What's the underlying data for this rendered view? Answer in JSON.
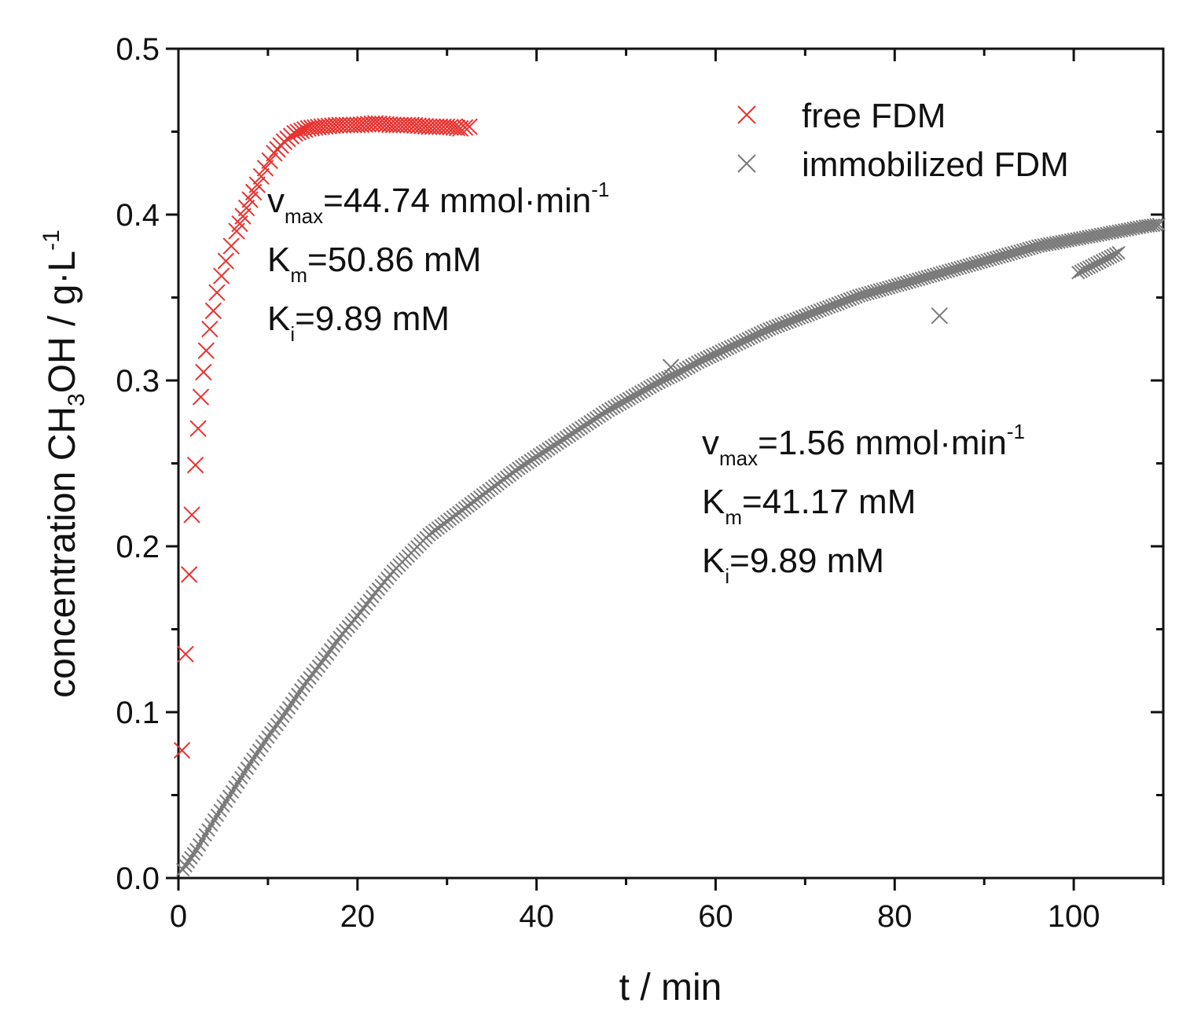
{
  "chart_data": {
    "type": "scatter",
    "title": "",
    "xlabel": "t / min",
    "ylabel": {
      "prefix": "concentration CH",
      "sub": "3",
      "middle": "OH / g·L",
      "sup": "-1"
    },
    "xlim": [
      0,
      110
    ],
    "ylim": [
      0.0,
      0.5
    ],
    "x_ticks": [
      0,
      20,
      40,
      60,
      80,
      100
    ],
    "y_ticks": [
      0.0,
      0.1,
      0.2,
      0.3,
      0.4,
      0.5
    ],
    "y_tick_labels": [
      "0.0",
      "0.1",
      "0.2",
      "0.3",
      "0.4",
      "0.5"
    ],
    "legend_position": "top-right",
    "marker": "×",
    "series": [
      {
        "name": "free FDM",
        "color": "#e8322f",
        "points": [
          [
            0.4,
            0.077
          ],
          [
            0.8,
            0.135
          ],
          [
            1.2,
            0.183
          ],
          [
            1.5,
            0.219
          ],
          [
            1.9,
            0.249
          ],
          [
            2.2,
            0.271
          ],
          [
            2.5,
            0.29
          ],
          [
            2.8,
            0.305
          ],
          [
            3.1,
            0.318
          ],
          [
            3.5,
            0.331
          ],
          [
            3.9,
            0.342
          ],
          [
            4.3,
            0.353
          ],
          [
            4.8,
            0.363
          ],
          [
            5.3,
            0.372
          ],
          [
            5.9,
            0.381
          ],
          [
            6.5,
            0.39
          ],
          [
            7.2,
            0.399
          ],
          [
            8.0,
            0.409
          ],
          [
            8.8,
            0.418
          ],
          [
            9.7,
            0.428
          ],
          [
            10.7,
            0.437
          ],
          [
            11.8,
            0.444
          ],
          [
            13.0,
            0.449
          ],
          [
            14.5,
            0.452
          ],
          [
            16.0,
            0.453
          ],
          [
            18.0,
            0.454
          ],
          [
            20.0,
            0.454
          ],
          [
            22.0,
            0.455
          ],
          [
            24.0,
            0.454
          ],
          [
            26.0,
            0.454
          ],
          [
            28.0,
            0.453
          ],
          [
            30.0,
            0.453
          ],
          [
            31.5,
            0.452
          ],
          [
            32.5,
            0.453
          ]
        ]
      },
      {
        "name": "immobilized FDM",
        "color": "#7a7a7a",
        "points": [
          [
            0.5,
            0.005
          ],
          [
            2.0,
            0.017
          ],
          [
            4.0,
            0.035
          ],
          [
            6.0,
            0.052
          ],
          [
            8.0,
            0.069
          ],
          [
            10.0,
            0.085
          ],
          [
            12.0,
            0.1
          ],
          [
            14.0,
            0.116
          ],
          [
            16.0,
            0.13
          ],
          [
            18.0,
            0.145
          ],
          [
            20.0,
            0.158
          ],
          [
            22.0,
            0.172
          ],
          [
            24.0,
            0.185
          ],
          [
            26.0,
            0.196
          ],
          [
            28.0,
            0.207
          ],
          [
            30.0,
            0.215
          ],
          [
            32.0,
            0.223
          ],
          [
            34.0,
            0.231
          ],
          [
            36.0,
            0.239
          ],
          [
            38.0,
            0.247
          ],
          [
            40.0,
            0.254
          ],
          [
            42.0,
            0.261
          ],
          [
            44.0,
            0.268
          ],
          [
            46.0,
            0.275
          ],
          [
            48.0,
            0.282
          ],
          [
            50.0,
            0.288
          ],
          [
            52.0,
            0.294
          ],
          [
            54.0,
            0.3
          ],
          [
            56.0,
            0.305
          ],
          [
            58.0,
            0.311
          ],
          [
            60.0,
            0.316
          ],
          [
            62.0,
            0.321
          ],
          [
            64.0,
            0.326
          ],
          [
            66.0,
            0.331
          ],
          [
            68.0,
            0.335
          ],
          [
            70.0,
            0.339
          ],
          [
            72.0,
            0.343
          ],
          [
            74.0,
            0.347
          ],
          [
            76.0,
            0.351
          ],
          [
            78.0,
            0.354
          ],
          [
            80.0,
            0.357
          ],
          [
            82.0,
            0.36
          ],
          [
            84.0,
            0.363
          ],
          [
            86.0,
            0.366
          ],
          [
            88.0,
            0.369
          ],
          [
            90.0,
            0.372
          ],
          [
            92.0,
            0.375
          ],
          [
            94.0,
            0.378
          ],
          [
            96.0,
            0.381
          ],
          [
            98.0,
            0.383
          ],
          [
            100.0,
            0.385
          ],
          [
            102.0,
            0.387
          ],
          [
            104.0,
            0.389
          ],
          [
            106.0,
            0.391
          ],
          [
            108.0,
            0.393
          ],
          [
            109.5,
            0.394
          ],
          [
            85.0,
            0.339
          ],
          [
            100.5,
            0.365
          ],
          [
            105.0,
            0.377
          ],
          [
            55.0,
            0.308
          ]
        ]
      }
    ],
    "annotations": [
      {
        "id": "free",
        "lines": [
          {
            "base": "v",
            "sub": "max",
            "rest": "=44.74 mmol·min",
            "sup": "-1"
          },
          {
            "base": "K",
            "sub": "m",
            "rest": "=50.86 mM",
            "sup": ""
          },
          {
            "base": "K",
            "sub": "i",
            "rest": "=9.89 mM",
            "sup": ""
          }
        ]
      },
      {
        "id": "immobilized",
        "lines": [
          {
            "base": "v",
            "sub": "max",
            "rest": "=1.56 mmol·min",
            "sup": "-1"
          },
          {
            "base": "K",
            "sub": "m",
            "rest": "=41.17 mM",
            "sup": ""
          },
          {
            "base": "K",
            "sub": "i",
            "rest": "=9.89 mM",
            "sup": ""
          }
        ]
      }
    ]
  }
}
